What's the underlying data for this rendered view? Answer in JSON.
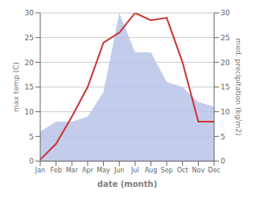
{
  "chart_data": {
    "type": "line",
    "xlabel": "date (month)",
    "ylabel": "max temp (C)",
    "y2label": "med. precipitation (kg/m2)",
    "categories": [
      "Jan",
      "Feb",
      "Mar",
      "Apr",
      "May",
      "Jun",
      "Jul",
      "Aug",
      "Sep",
      "Oct",
      "Nov",
      "Dec"
    ],
    "series": [
      {
        "type": "area",
        "color": "#b8c4e8",
        "values": [
          6,
          8,
          8,
          9,
          14,
          30,
          22,
          22,
          16,
          15,
          12,
          11
        ]
      },
      {
        "type": "line",
        "color": "#cc3333",
        "values": [
          0.3,
          3.5,
          9,
          15,
          24,
          26,
          30,
          28.5,
          29,
          20,
          8,
          8
        ]
      }
    ],
    "ylim": [
      0,
      30
    ],
    "yticks": [
      0,
      5,
      10,
      15,
      20,
      25,
      30
    ],
    "y2lim": [
      0,
      30
    ],
    "y2ticks": [
      0,
      5,
      10,
      15,
      20,
      25,
      30
    ],
    "grid": true
  }
}
